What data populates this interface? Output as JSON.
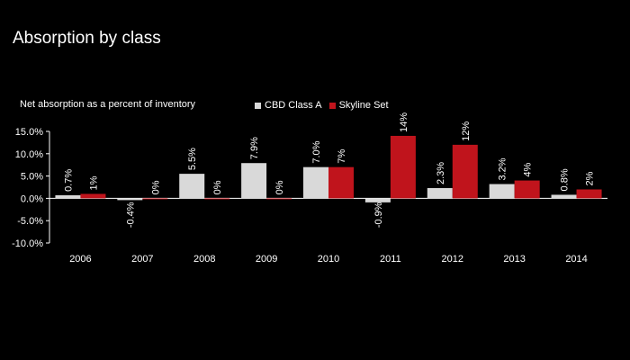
{
  "title": "Absorption by class",
  "chart_data": {
    "type": "bar",
    "title": "Absorption by class",
    "ylabel": "Net absorption as a percent of inventory",
    "xlabel": "",
    "categories": [
      "2006",
      "2007",
      "2008",
      "2009",
      "2010",
      "2011",
      "2012",
      "2013",
      "2014"
    ],
    "series": [
      {
        "name": "CBD Class A",
        "color": "#d9d9d9",
        "values": [
          0.7,
          -0.4,
          5.5,
          7.9,
          7.0,
          -0.9,
          2.3,
          3.2,
          0.8
        ],
        "labels": [
          "0.7%",
          "-0.4%",
          "5.5%",
          "7.9%",
          "7.0%",
          "-0.9%",
          "2.3%",
          "3.2%",
          "0.8%"
        ]
      },
      {
        "name": "Skyline Set",
        "color": "#c0141c",
        "values": [
          1,
          0,
          0,
          0,
          7,
          14,
          12,
          4,
          2
        ],
        "labels": [
          "1%",
          "0%",
          "0%",
          "0%",
          "7%",
          "14%",
          "12%",
          "4%",
          "2%"
        ]
      }
    ],
    "ylim": [
      -10,
      15
    ],
    "yticks": [
      15,
      10,
      5,
      0,
      -5,
      -10
    ],
    "ytick_labels": [
      "15.0%",
      "10.0%",
      "5.0%",
      "0.0%",
      "-5.0%",
      "-10.0%"
    ],
    "legend_position": "top-center",
    "grid": false
  }
}
